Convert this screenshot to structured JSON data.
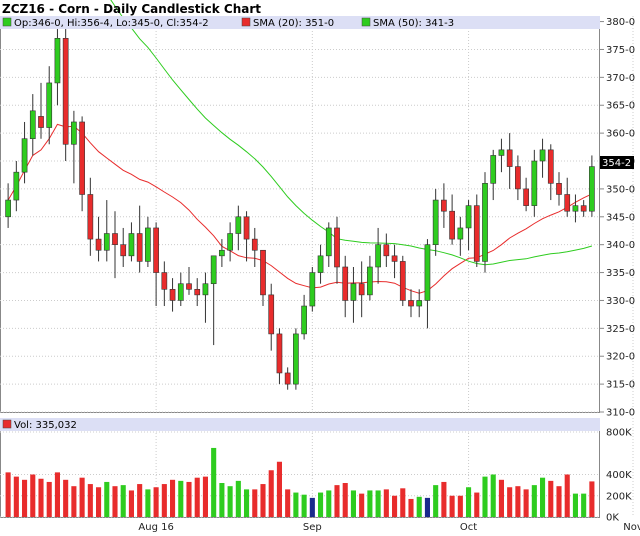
{
  "chart_data": {
    "type": "candlestick",
    "title": "ZCZ16 - Corn - Daily Candlestick Chart",
    "ohlc_summary": "Op:346-0, Hi:356-4, Lo:345-0, Cl:354-2",
    "last_price_label": "354-2",
    "y_ticks": [
      "380-0",
      "375-0",
      "370-0",
      "365-0",
      "360-0",
      "355-0",
      "350-0",
      "345-0",
      "340-0",
      "335-0",
      "330-0",
      "325-0",
      "320-0",
      "315-0",
      "310-0"
    ],
    "ylim": [
      310,
      381
    ],
    "x_ticks": [
      {
        "label": "Aug 16",
        "index": 18
      },
      {
        "label": "Sep",
        "index": 37
      },
      {
        "label": "Oct",
        "index": 56
      },
      {
        "label": "Nov",
        "index": 76
      }
    ],
    "sma20": {
      "label": "SMA (20): 351-0",
      "color": "#e82c2c"
    },
    "sma50": {
      "label": "SMA (50): 341-3",
      "color": "#2ecc1f"
    },
    "candles": [
      [
        345,
        351,
        343,
        348
      ],
      [
        348,
        355,
        346,
        353
      ],
      [
        353,
        362,
        351,
        359
      ],
      [
        359,
        367,
        356,
        364
      ],
      [
        363,
        369,
        359,
        361
      ],
      [
        361,
        372,
        358,
        369
      ],
      [
        369,
        381,
        365,
        377
      ],
      [
        377,
        380,
        355,
        358
      ],
      [
        358,
        364,
        351,
        362
      ],
      [
        362,
        363,
        346,
        349
      ],
      [
        349,
        352,
        338,
        341
      ],
      [
        341,
        345,
        337,
        339
      ],
      [
        339,
        348,
        337,
        342
      ],
      [
        342,
        346,
        334,
        340
      ],
      [
        340,
        343,
        336,
        338
      ],
      [
        338,
        344,
        337,
        342
      ],
      [
        342,
        347,
        335,
        337
      ],
      [
        337,
        345,
        336,
        343
      ],
      [
        343,
        344,
        329,
        335
      ],
      [
        335,
        337,
        329,
        332
      ],
      [
        332,
        334,
        328,
        330
      ],
      [
        330,
        335,
        329,
        333
      ],
      [
        333,
        336,
        331,
        332
      ],
      [
        332,
        334,
        329,
        331
      ],
      [
        331,
        335,
        326,
        333
      ],
      [
        333,
        338,
        322,
        338
      ],
      [
        338,
        341,
        336,
        339
      ],
      [
        339,
        344,
        337,
        342
      ],
      [
        342,
        347,
        339,
        345
      ],
      [
        345,
        346,
        337,
        341
      ],
      [
        341,
        343,
        336,
        339
      ],
      [
        339,
        339,
        329,
        331
      ],
      [
        331,
        333,
        321,
        324
      ],
      [
        324,
        325,
        315,
        317
      ],
      [
        317,
        318,
        314,
        315
      ],
      [
        315,
        325,
        314,
        324
      ],
      [
        324,
        331,
        323,
        329
      ],
      [
        329,
        336,
        328,
        335
      ],
      [
        335,
        340,
        333,
        338
      ],
      [
        338,
        344,
        336,
        343
      ],
      [
        343,
        345,
        333,
        336
      ],
      [
        336,
        338,
        327,
        330
      ],
      [
        330,
        336,
        326,
        333
      ],
      [
        333,
        337,
        327,
        331
      ],
      [
        331,
        338,
        330,
        336
      ],
      [
        336,
        343,
        333,
        340
      ],
      [
        340,
        342,
        336,
        338
      ],
      [
        338,
        340,
        334,
        337
      ],
      [
        337,
        338,
        329,
        330
      ],
      [
        330,
        332,
        327,
        329
      ],
      [
        329,
        332,
        327,
        330
      ],
      [
        330,
        341,
        325,
        340
      ],
      [
        340,
        350,
        338,
        348
      ],
      [
        348,
        351,
        343,
        346
      ],
      [
        346,
        349,
        340,
        341
      ],
      [
        341,
        345,
        338,
        343
      ],
      [
        343,
        348,
        339,
        347
      ],
      [
        347,
        349,
        336,
        337
      ],
      [
        337,
        353,
        335,
        351
      ],
      [
        351,
        357,
        348,
        356
      ],
      [
        356,
        359,
        353,
        357
      ],
      [
        357,
        360,
        350,
        354
      ],
      [
        354,
        356,
        348,
        350
      ],
      [
        350,
        352,
        346,
        347
      ],
      [
        347,
        357,
        345,
        355
      ],
      [
        355,
        359,
        352,
        357
      ],
      [
        357,
        358,
        348,
        351
      ],
      [
        351,
        353,
        347,
        349
      ],
      [
        349,
        352,
        345,
        346
      ],
      [
        346,
        349,
        344,
        347
      ],
      [
        347,
        348,
        345,
        346
      ],
      [
        346,
        356,
        345,
        354
      ]
    ],
    "volume": {
      "label": "Vol: 335,032",
      "y_ticks": [
        "800K",
        "400K",
        "200K",
        "0K"
      ],
      "bars": [
        [
          420,
          "r"
        ],
        [
          380,
          "r"
        ],
        [
          350,
          "r"
        ],
        [
          400,
          "r"
        ],
        [
          360,
          "r"
        ],
        [
          330,
          "r"
        ],
        [
          420,
          "r"
        ],
        [
          350,
          "r"
        ],
        [
          290,
          "r"
        ],
        [
          370,
          "r"
        ],
        [
          310,
          "r"
        ],
        [
          280,
          "r"
        ],
        [
          330,
          "g"
        ],
        [
          290,
          "r"
        ],
        [
          300,
          "g"
        ],
        [
          250,
          "r"
        ],
        [
          310,
          "r"
        ],
        [
          260,
          "g"
        ],
        [
          280,
          "r"
        ],
        [
          310,
          "r"
        ],
        [
          350,
          "r"
        ],
        [
          340,
          "g"
        ],
        [
          330,
          "r"
        ],
        [
          370,
          "r"
        ],
        [
          380,
          "r"
        ],
        [
          650,
          "g"
        ],
        [
          320,
          "g"
        ],
        [
          290,
          "g"
        ],
        [
          340,
          "g"
        ],
        [
          260,
          "g"
        ],
        [
          260,
          "r"
        ],
        [
          310,
          "r"
        ],
        [
          440,
          "r"
        ],
        [
          520,
          "r"
        ],
        [
          260,
          "r"
        ],
        [
          230,
          "g"
        ],
        [
          210,
          "g"
        ],
        [
          180,
          "b"
        ],
        [
          230,
          "g"
        ],
        [
          250,
          "g"
        ],
        [
          300,
          "r"
        ],
        [
          320,
          "r"
        ],
        [
          250,
          "g"
        ],
        [
          220,
          "r"
        ],
        [
          250,
          "g"
        ],
        [
          250,
          "g"
        ],
        [
          260,
          "r"
        ],
        [
          200,
          "r"
        ],
        [
          270,
          "r"
        ],
        [
          170,
          "r"
        ],
        [
          190,
          "g"
        ],
        [
          180,
          "b"
        ],
        [
          300,
          "g"
        ],
        [
          330,
          "r"
        ],
        [
          200,
          "r"
        ],
        [
          200,
          "r"
        ],
        [
          280,
          "g"
        ],
        [
          230,
          "r"
        ],
        [
          380,
          "g"
        ],
        [
          400,
          "g"
        ],
        [
          350,
          "r"
        ],
        [
          280,
          "r"
        ],
        [
          290,
          "r"
        ],
        [
          260,
          "r"
        ],
        [
          300,
          "g"
        ],
        [
          370,
          "g"
        ],
        [
          340,
          "r"
        ],
        [
          290,
          "r"
        ],
        [
          400,
          "r"
        ],
        [
          220,
          "g"
        ],
        [
          220,
          "g"
        ],
        [
          335,
          "r"
        ]
      ]
    },
    "colors": {
      "up": "#2ecc1f",
      "down": "#e82c2c",
      "neutral": "#1a2a8c",
      "header_bg": "#dcdff5"
    }
  }
}
